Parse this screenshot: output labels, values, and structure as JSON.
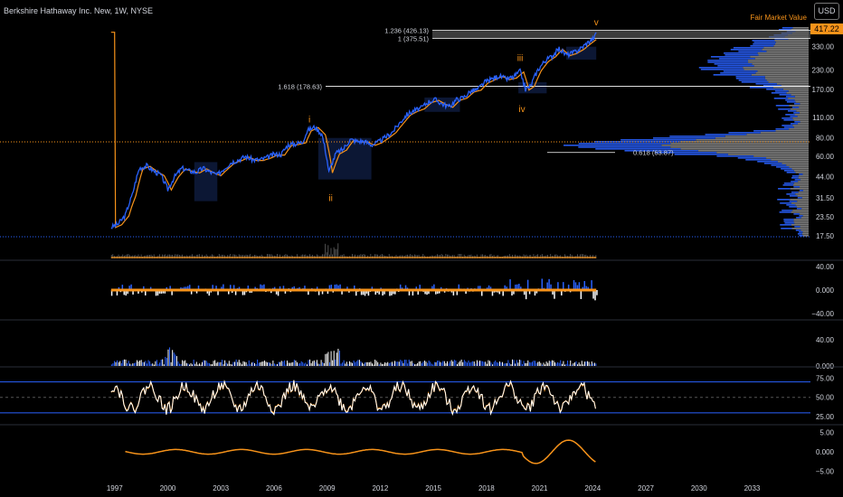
{
  "header": {
    "symbol_title": "Berkshire Hathaway Inc. New, 1W, NYSE",
    "currency": "USD",
    "fair_value_label": "Fair Market Value",
    "last_price": "417.22"
  },
  "colors": {
    "background": "#000000",
    "price_line": "#2962ff",
    "orange": "#f7931a",
    "fib_line": "#ffffff",
    "blue_box": "#0d1a3a",
    "gray_bar": "#9e9e9e",
    "guide_blue": "#2962ff"
  },
  "chart_data": {
    "type": "line",
    "title": "Berkshire Hathaway Inc. New, 1W, NYSE",
    "x_axis": {
      "tick_labels": [
        "1997",
        "2000",
        "2003",
        "2006",
        "2009",
        "2012",
        "2015",
        "2018",
        "2021",
        "2024",
        "2027",
        "2030",
        "2033"
      ],
      "range": [
        1996.4,
        2036.5
      ]
    },
    "price_axis": {
      "scale": "log",
      "tick_labels": [
        "330.00",
        "230.00",
        "170.00",
        "110.00",
        "80.00",
        "60.00",
        "44.00",
        "31.50",
        "23.50",
        "17.50"
      ],
      "range": [
        15,
        480
      ]
    },
    "price_series": {
      "name": "",
      "x": [
        1996.8,
        1997.2,
        1997.6,
        1998.0,
        1998.4,
        1998.8,
        1999.2,
        1999.6,
        2000.0,
        2000.4,
        2000.8,
        2001.2,
        2001.6,
        2002.0,
        2002.4,
        2002.8,
        2003.2,
        2003.6,
        2004.0,
        2004.4,
        2004.8,
        2005.2,
        2005.6,
        2006.0,
        2006.4,
        2006.8,
        2007.2,
        2007.6,
        2007.9,
        2008.3,
        2008.7,
        2009.1,
        2009.5,
        2009.9,
        2010.3,
        2010.7,
        2011.1,
        2011.5,
        2011.9,
        2012.3,
        2012.7,
        2013.1,
        2013.5,
        2013.9,
        2014.3,
        2014.7,
        2015.1,
        2015.5,
        2015.9,
        2016.3,
        2016.7,
        2017.1,
        2017.5,
        2017.9,
        2018.3,
        2018.7,
        2019.1,
        2019.5,
        2019.9,
        2020.2,
        2020.5,
        2020.9,
        2021.3,
        2021.7,
        2022.1,
        2022.5,
        2022.9,
        2023.3,
        2023.7,
        2024.1,
        2024.2
      ],
      "y": [
        20,
        21,
        24,
        33,
        50,
        52,
        48,
        45,
        36,
        44,
        50,
        48,
        47,
        50,
        47,
        45,
        50,
        55,
        57,
        60,
        57,
        57,
        59,
        62,
        62,
        72,
        73,
        75,
        90,
        95,
        85,
        47,
        63,
        67,
        78,
        76,
        76,
        72,
        75,
        81,
        88,
        101,
        115,
        122,
        127,
        140,
        145,
        136,
        130,
        145,
        150,
        165,
        170,
        190,
        200,
        210,
        200,
        205,
        225,
        170,
        180,
        230,
        265,
        285,
        320,
        290,
        300,
        320,
        350,
        380,
        417
      ]
    },
    "fib_levels": [
      {
        "label": "1.236 (426.13)",
        "value": 426.13
      },
      {
        "label": "1 (375.51)",
        "value": 375.51
      },
      {
        "label": "1.618 (178.63)",
        "value": 178.63
      },
      {
        "label": "0.618 (63.87)",
        "value": 63.87
      }
    ],
    "wave_labels": [
      {
        "text": "i",
        "x": 2008.0,
        "y": 102
      },
      {
        "text": "ii",
        "x": 2009.2,
        "y": 30
      },
      {
        "text": "iii",
        "x": 2019.9,
        "y": 265
      },
      {
        "text": "iv",
        "x": 2020.0,
        "y": 120
      },
      {
        "text": "v",
        "x": 2024.2,
        "y": 460
      }
    ],
    "indicators": [
      {
        "name": "",
        "tick_labels": [
          "40.00",
          "0.000",
          "−40.00"
        ],
        "range": [
          -48,
          48
        ]
      },
      {
        "name": "",
        "tick_labels": [
          "40.00",
          "0.000"
        ],
        "range": [
          0,
          68
        ]
      },
      {
        "name": "",
        "tick_labels": [
          "75.00",
          "50.00",
          "25.00"
        ],
        "range": [
          17,
          87
        ],
        "guide_levels": [
          70,
          30
        ]
      },
      {
        "name": "",
        "tick_labels": [
          "5.00",
          "0.000",
          "−5.00"
        ],
        "range": [
          -6.5,
          6.5
        ]
      }
    ]
  }
}
